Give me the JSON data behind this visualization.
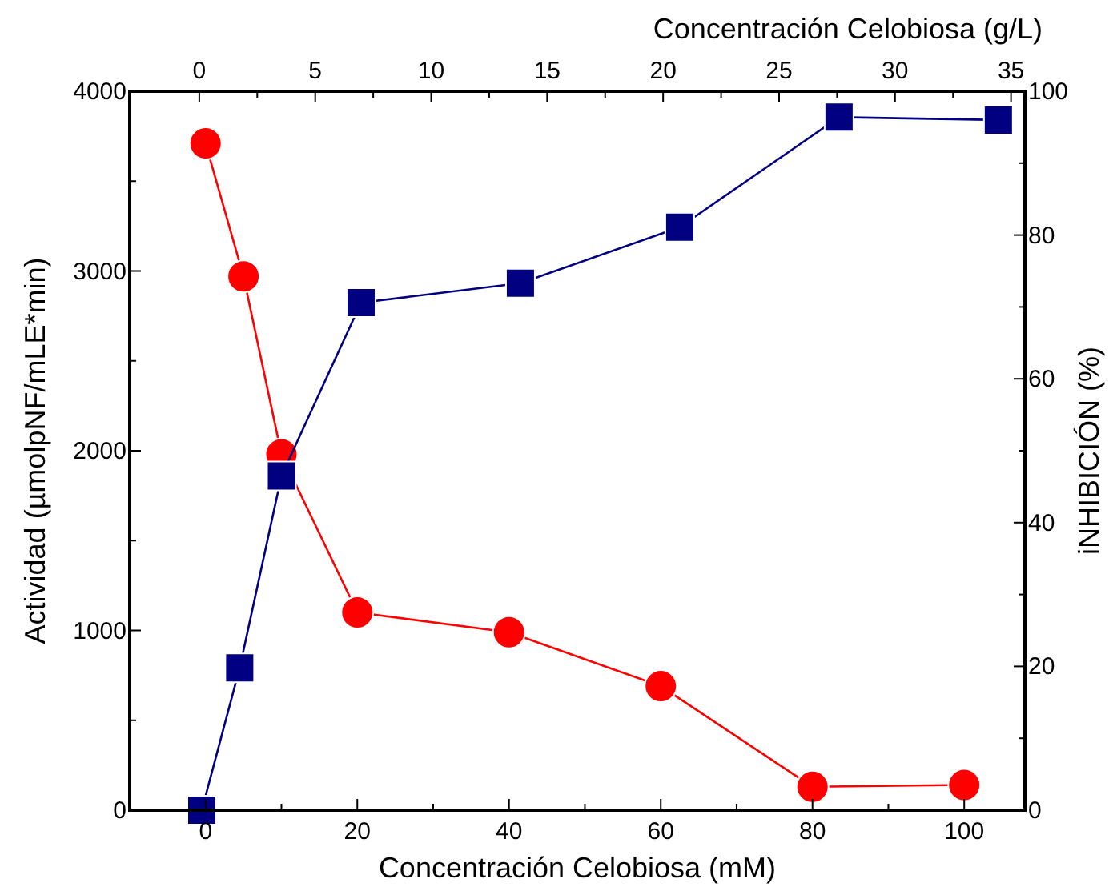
{
  "chart_data": {
    "type": "line",
    "xlabel": "Concentración Celobiosa (mM)",
    "x2label": "Concentración Celobiosa (g/L)",
    "ylabel": "Actividad (µmolpNF/mLE*min)",
    "y2label": "iNHIBICIÓN (%)",
    "xlim": [
      -10,
      108
    ],
    "xticks": [
      0,
      {
        "value": 10,
        "label": null
      },
      20,
      {
        "value": 30,
        "label": null
      },
      40,
      {
        "value": 50,
        "label": null
      },
      60,
      {
        "value": 70,
        "label": null
      },
      80,
      {
        "value": 90,
        "label": null
      },
      100
    ],
    "x2lim": [
      -3,
      35.6
    ],
    "x2ticks": [
      0,
      {
        "value": 2.5,
        "label": null
      },
      5,
      {
        "value": 7.5,
        "label": null
      },
      10,
      {
        "value": 12.5,
        "label": null
      },
      15,
      {
        "value": 17.5,
        "label": null
      },
      20,
      {
        "value": 22.5,
        "label": null
      },
      25,
      {
        "value": 27.5,
        "label": null
      },
      30,
      {
        "value": 32.5,
        "label": null
      },
      35
    ],
    "ylim": [
      0,
      4000
    ],
    "yticks": [
      0,
      {
        "value": 500,
        "label": null
      },
      1000,
      {
        "value": 1500,
        "label": null
      },
      2000,
      {
        "value": 2500,
        "label": null
      },
      3000,
      {
        "value": 3500,
        "label": null
      },
      4000
    ],
    "y2lim": [
      0,
      100
    ],
    "y2ticks": [
      0,
      {
        "value": 10,
        "label": null
      },
      20,
      {
        "value": 30,
        "label": null
      },
      40,
      {
        "value": 50,
        "label": null
      },
      60,
      {
        "value": 70,
        "label": null
      },
      80,
      {
        "value": 90,
        "label": null
      },
      100
    ],
    "grid": false,
    "line_style": "solid",
    "series": [
      {
        "color": "#ff0000",
        "marker": "circle",
        "x": [
          0,
          5,
          10,
          20,
          40,
          60,
          80,
          100
        ],
        "values": [
          3710,
          2970,
          1980,
          1100,
          990,
          690,
          130,
          140
        ]
      },
      {
        "color": "#000080",
        "marker": "square",
        "axis": "y2",
        "x": [
          -0.5,
          4.5,
          10,
          20.5,
          41.5,
          62.5,
          83.5,
          104.5
        ],
        "values": [
          0,
          19.8,
          46.5,
          70.6,
          73.3,
          81.1,
          96.4,
          96.0
        ]
      }
    ]
  }
}
